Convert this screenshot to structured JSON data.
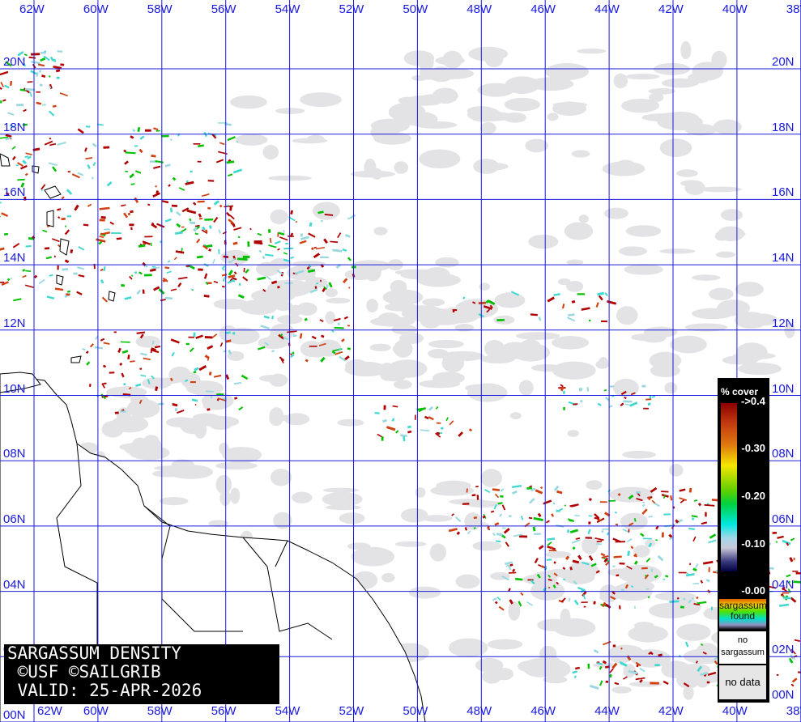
{
  "title": {
    "line1": "SARGASSUM DENSITY",
    "line2": " ©USF ©SAILGRIB",
    "line3": " VALID: 25-APR-2026"
  },
  "longitudes": [
    "62W",
    "60W",
    "58W",
    "56W",
    "54W",
    "52W",
    "50W",
    "48W",
    "46W",
    "44W",
    "42W",
    "40W",
    "38W"
  ],
  "latitudes": [
    "20N",
    "18N",
    "16N",
    "14N",
    "12N",
    "10N",
    "08N",
    "06N",
    "04N",
    "02N",
    "00N"
  ],
  "legend": {
    "header": "% cover",
    "ticks": [
      "->0.4",
      "-0.30",
      "-0.20",
      "-0.10",
      "-0.00"
    ],
    "found": "sargassum found",
    "none": "no sargassum",
    "nodata": "no data"
  },
  "colors": {
    "grid": "#1a1adf",
    "nodata": "#e3e3e6",
    "land": "#ffffff",
    "high": "#b00000",
    "mid": "#00c000",
    "low": "#40d8d0"
  }
}
